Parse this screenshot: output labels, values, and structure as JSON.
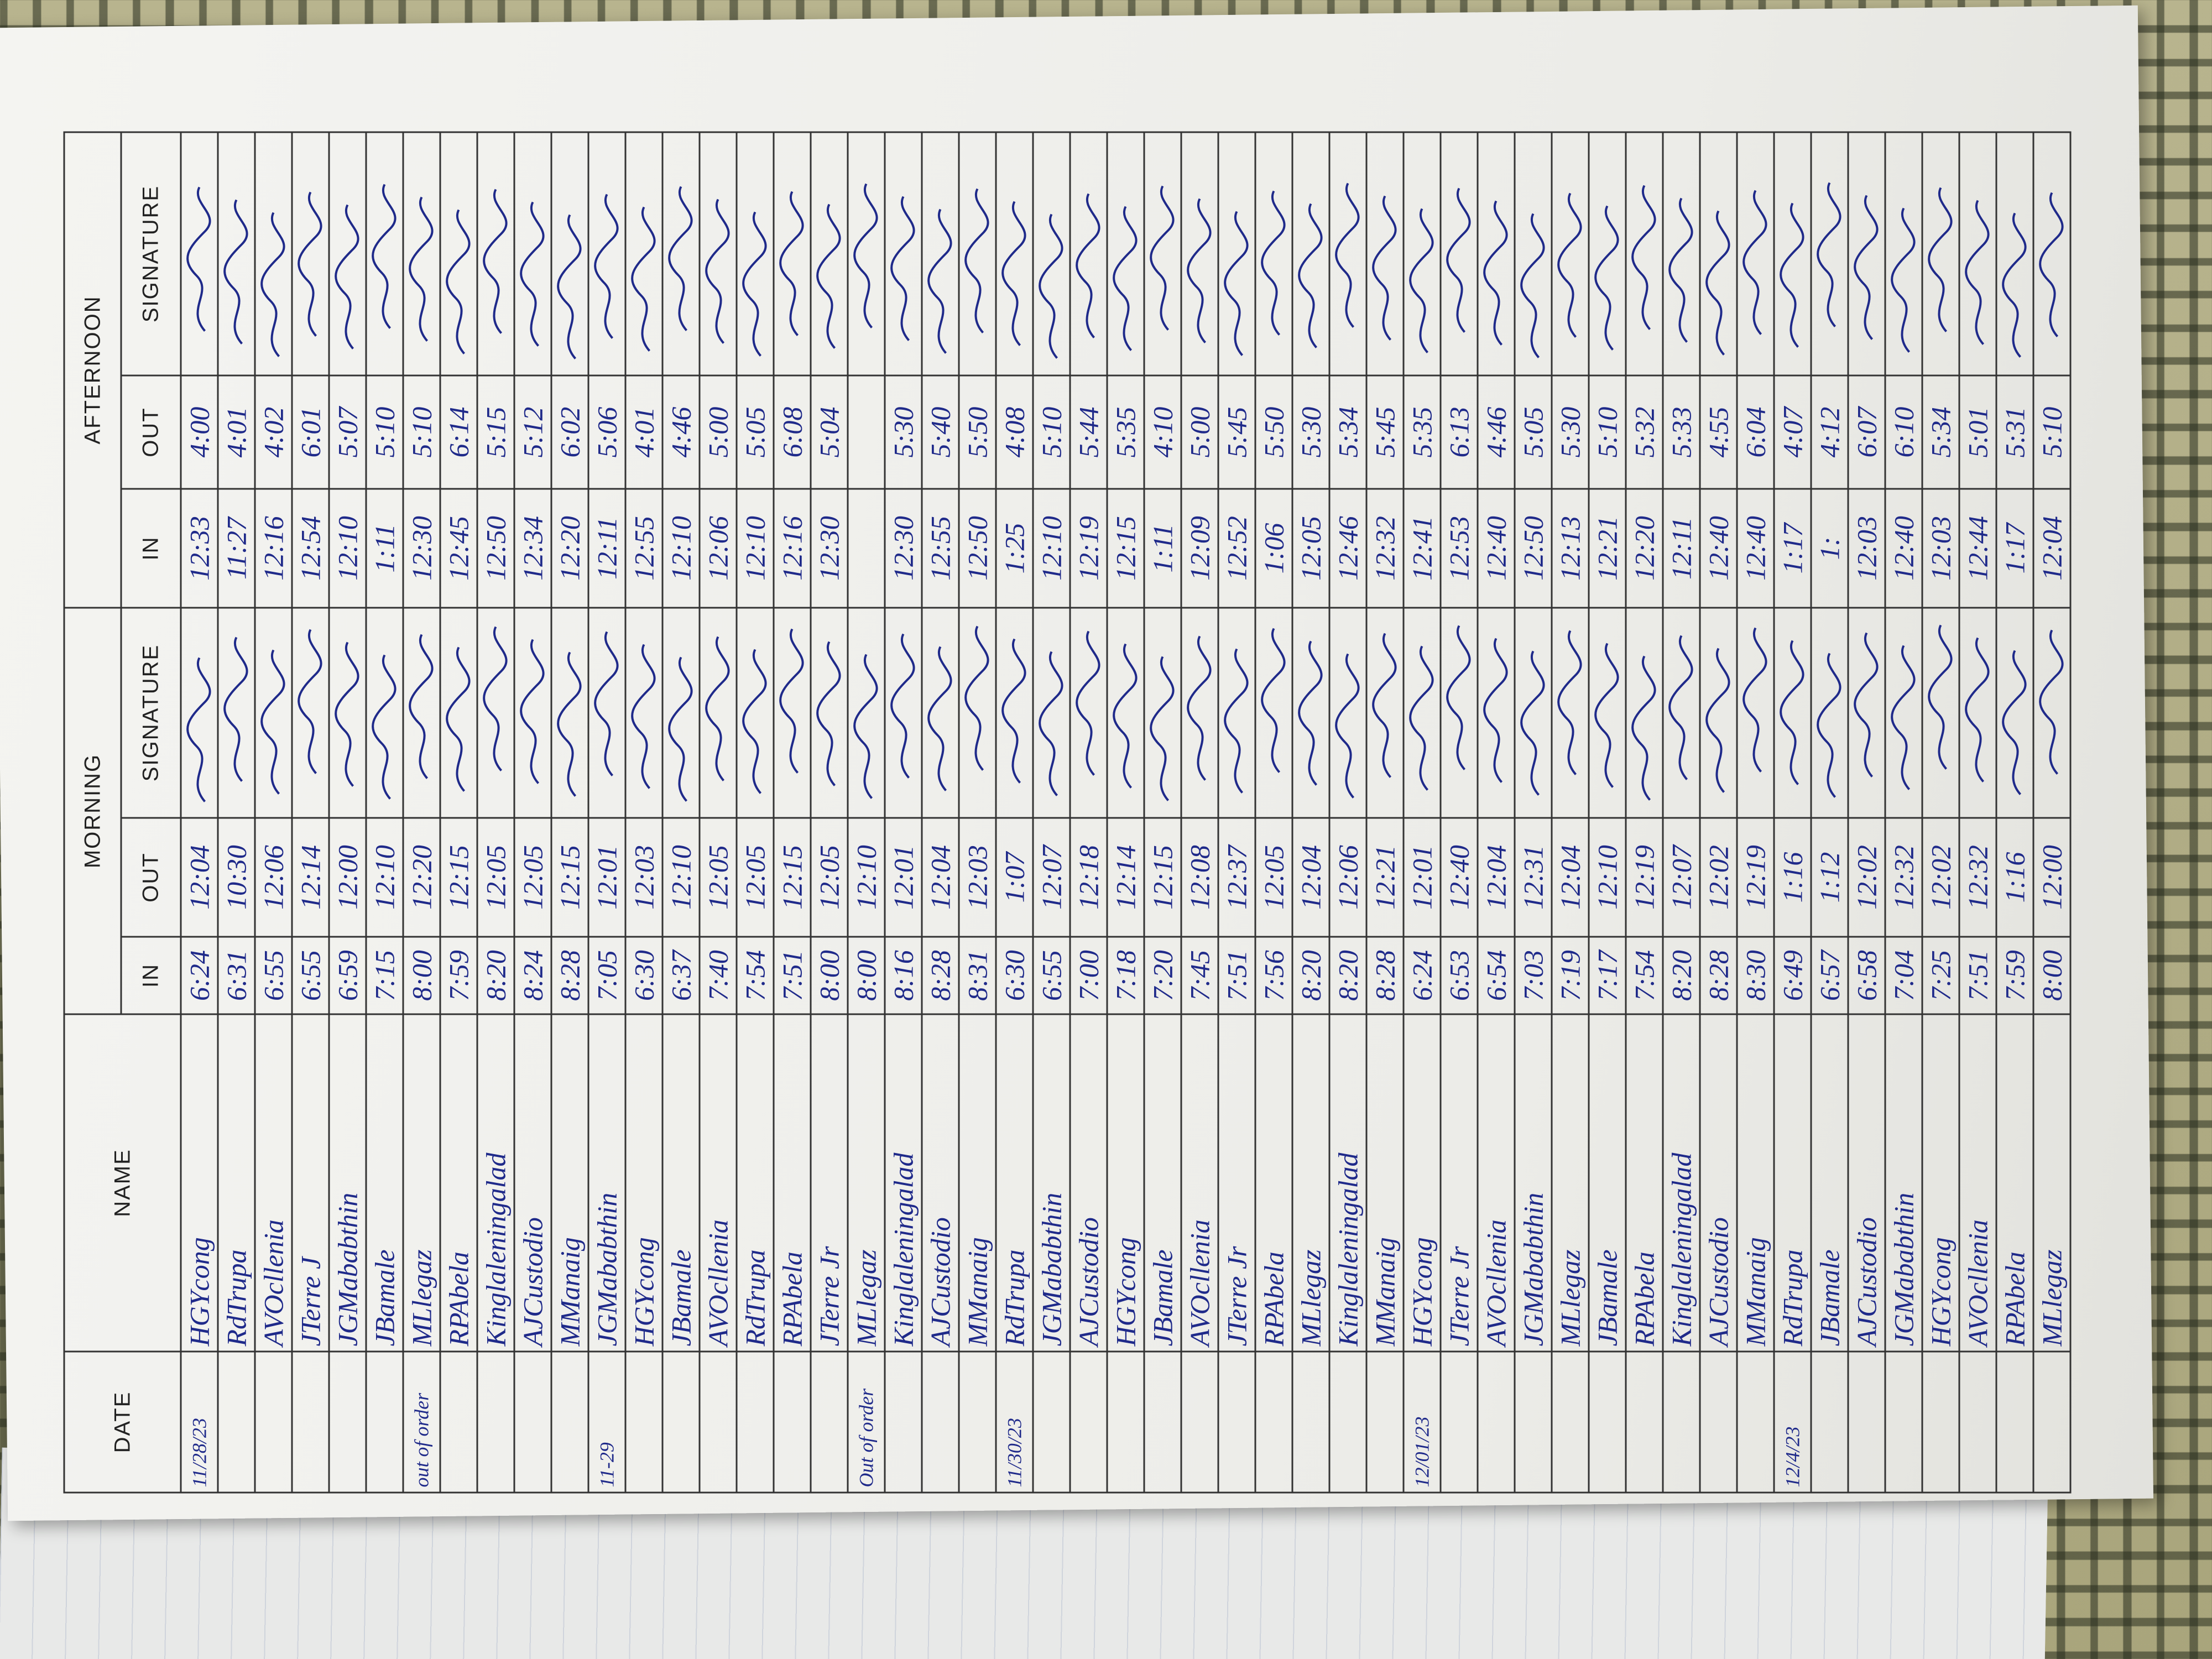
{
  "header": {
    "date": "DATE",
    "name": "NAME",
    "morning": "MORNING",
    "morning_in": "IN",
    "morning_out": "OUT",
    "morning_signature": "SIGNATURE",
    "afternoon": "AFTERNOON",
    "afternoon_in": "IN",
    "afternoon_out": "OUT",
    "afternoon_signature": "SIGNATURE"
  },
  "rows": [
    {
      "date": "11/28/23",
      "name": "HGYcong",
      "morning_in": "6:24",
      "morning_out": "12:04",
      "afternoon_in": "12:33",
      "afternoon_out": "4:00"
    },
    {
      "name": "RdTrupa",
      "morning_in": "6:31",
      "morning_out": "10:30",
      "afternoon_in": "11:27",
      "afternoon_out": "4:01"
    },
    {
      "name": "AVOcllenia",
      "morning_in": "6:55",
      "morning_out": "12:06",
      "afternoon_in": "12:16",
      "afternoon_out": "4:02"
    },
    {
      "name": "JTerre J",
      "morning_in": "6:55",
      "morning_out": "12:14",
      "afternoon_in": "12:54",
      "afternoon_out": "6:01"
    },
    {
      "name": "JGMababthin",
      "morning_in": "6:59",
      "morning_out": "12:00",
      "afternoon_in": "12:10",
      "afternoon_out": "5:07"
    },
    {
      "name": "JBamale",
      "morning_in": "7:15",
      "morning_out": "12:10",
      "afternoon_in": "1:11",
      "afternoon_out": "5:10"
    },
    {
      "date": "out of order",
      "name": "MLlegaz",
      "morning_in": "8:00",
      "morning_out": "12:20",
      "afternoon_in": "12:30",
      "afternoon_out": "5:10"
    },
    {
      "name": "RPAbela",
      "morning_in": "7:59",
      "morning_out": "12:15",
      "afternoon_in": "12:45",
      "afternoon_out": "6:14"
    },
    {
      "name": "Kinglaleningalad",
      "morning_in": "8:20",
      "morning_out": "12:05",
      "afternoon_in": "12:50",
      "afternoon_out": "5:15"
    },
    {
      "name": "AJCustodio",
      "morning_in": "8:24",
      "morning_out": "12:05",
      "afternoon_in": "12:34",
      "afternoon_out": "5:12"
    },
    {
      "name": "MManaig",
      "morning_in": "8:28",
      "morning_out": "12:15",
      "afternoon_in": "12:20",
      "afternoon_out": "6:02"
    },
    {
      "date": "11-29",
      "name": "JGMababthin",
      "morning_in": "7:05",
      "morning_out": "12:01",
      "afternoon_in": "12:11",
      "afternoon_out": "5:06"
    },
    {
      "name": "HGYcong",
      "morning_in": "6:30",
      "morning_out": "12:03",
      "afternoon_in": "12:55",
      "afternoon_out": "4:01"
    },
    {
      "name": "JBamale",
      "morning_in": "6:37",
      "morning_out": "12:10",
      "afternoon_in": "12:10",
      "afternoon_out": "4:46"
    },
    {
      "name": "AVOcllenia",
      "morning_in": "7:40",
      "morning_out": "12:05",
      "afternoon_in": "12:06",
      "afternoon_out": "5:00"
    },
    {
      "name": "RdTrupa",
      "morning_in": "7:54",
      "morning_out": "12:05",
      "afternoon_in": "12:10",
      "afternoon_out": "5:05"
    },
    {
      "name": "RPAbela",
      "morning_in": "7:51",
      "morning_out": "12:15",
      "afternoon_in": "12:16",
      "afternoon_out": "6:08"
    },
    {
      "name": "JTerre Jr",
      "morning_in": "8:00",
      "morning_out": "12:05",
      "afternoon_in": "12:30",
      "afternoon_out": "5:04"
    },
    {
      "date": "Out of order",
      "name": "MLlegaz",
      "morning_in": "8:00",
      "morning_out": "12:10"
    },
    {
      "name": "Kinglaleningalad",
      "morning_in": "8:16",
      "morning_out": "12:01",
      "afternoon_in": "12:30",
      "afternoon_out": "5:30"
    },
    {
      "name": "AJCustodio",
      "morning_in": "8:28",
      "morning_out": "12:04",
      "afternoon_in": "12:55",
      "afternoon_out": "5:40"
    },
    {
      "name": "MManaig",
      "morning_in": "8:31",
      "morning_out": "12:03",
      "afternoon_in": "12:50",
      "afternoon_out": "5:50"
    },
    {
      "date": "11/30/23",
      "name": "RdTrupa",
      "morning_in": "6:30",
      "morning_out": "1:07",
      "afternoon_in": "1:25",
      "afternoon_out": "4:08"
    },
    {
      "name": "JGMababthin",
      "morning_in": "6:55",
      "morning_out": "12:07",
      "afternoon_in": "12:10",
      "afternoon_out": "5:10"
    },
    {
      "name": "AJCustodio",
      "morning_in": "7:00",
      "morning_out": "12:18",
      "afternoon_in": "12:19",
      "afternoon_out": "5:44"
    },
    {
      "name": "HGYcong",
      "morning_in": "7:18",
      "morning_out": "12:14",
      "afternoon_in": "12:15",
      "afternoon_out": "5:35"
    },
    {
      "name": "JBamale",
      "morning_in": "7:20",
      "morning_out": "12:15",
      "afternoon_in": "1:11",
      "afternoon_out": "4:10"
    },
    {
      "name": "AVOcllenia",
      "morning_in": "7:45",
      "morning_out": "12:08",
      "afternoon_in": "12:09",
      "afternoon_out": "5:00"
    },
    {
      "name": "JTerre Jr",
      "morning_in": "7:51",
      "morning_out": "12:37",
      "afternoon_in": "12:52",
      "afternoon_out": "5:45"
    },
    {
      "name": "RPAbela",
      "morning_in": "7:56",
      "morning_out": "12:05",
      "afternoon_in": "1:06",
      "afternoon_out": "5:50"
    },
    {
      "name": "MLlegaz",
      "morning_in": "8:20",
      "morning_out": "12:04",
      "afternoon_in": "12:05",
      "afternoon_out": "5:30"
    },
    {
      "name": "Kinglaleningalad",
      "morning_in": "8:20",
      "morning_out": "12:06",
      "afternoon_in": "12:46",
      "afternoon_out": "5:34"
    },
    {
      "name": "MManaig",
      "morning_in": "8:28",
      "morning_out": "12:21",
      "afternoon_in": "12:32",
      "afternoon_out": "5:45"
    },
    {
      "date": "12/01/23",
      "name": "HGYcong",
      "morning_in": "6:24",
      "morning_out": "12:01",
      "afternoon_in": "12:41",
      "afternoon_out": "5:35"
    },
    {
      "name": "JTerre Jr",
      "morning_in": "6:53",
      "morning_out": "12:40",
      "afternoon_in": "12:53",
      "afternoon_out": "6:13"
    },
    {
      "name": "AVOcllenia",
      "morning_in": "6:54",
      "morning_out": "12:04",
      "afternoon_in": "12:40",
      "afternoon_out": "4:46"
    },
    {
      "name": "JGMababthin",
      "morning_in": "7:03",
      "morning_out": "12:31",
      "afternoon_in": "12:50",
      "afternoon_out": "5:05"
    },
    {
      "name": "MLlegaz",
      "morning_in": "7:19",
      "morning_out": "12:04",
      "afternoon_in": "12:13",
      "afternoon_out": "5:30"
    },
    {
      "name": "JBamale",
      "morning_in": "7:17",
      "morning_out": "12:10",
      "afternoon_in": "12:21",
      "afternoon_out": "5:10"
    },
    {
      "name": "RPAbela",
      "morning_in": "7:54",
      "morning_out": "12:19",
      "afternoon_in": "12:20",
      "afternoon_out": "5:32"
    },
    {
      "name": "Kinglaleningalad",
      "morning_in": "8:20",
      "morning_out": "12:07",
      "afternoon_in": "12:11",
      "afternoon_out": "5:33"
    },
    {
      "name": "AJCustodio",
      "morning_in": "8:28",
      "morning_out": "12:02",
      "afternoon_in": "12:40",
      "afternoon_out": "4:55"
    },
    {
      "name": "MManaig",
      "morning_in": "8:30",
      "morning_out": "12:19",
      "afternoon_in": "12:40",
      "afternoon_out": "6:04"
    },
    {
      "date": "12/4/23",
      "name": "RdTrupa",
      "morning_in": "6:49",
      "morning_out": "1:16",
      "afternoon_in": "1:17",
      "afternoon_out": "4:07"
    },
    {
      "name": "JBamale",
      "morning_in": "6:57",
      "morning_out": "1:12",
      "afternoon_in": "1:",
      "afternoon_out": "4:12"
    },
    {
      "name": "AJCustodio",
      "morning_in": "6:58",
      "morning_out": "12:02",
      "afternoon_in": "12:03",
      "afternoon_out": "6:07"
    },
    {
      "name": "JGMababthin",
      "morning_in": "7:04",
      "morning_out": "12:32",
      "afternoon_in": "12:40",
      "afternoon_out": "6:10"
    },
    {
      "name": "HGYcong",
      "morning_in": "7:25",
      "morning_out": "12:02",
      "afternoon_in": "12:03",
      "afternoon_out": "5:34"
    },
    {
      "name": "AVOcllenia",
      "morning_in": "7:51",
      "morning_out": "12:32",
      "afternoon_in": "12:44",
      "afternoon_out": "5:01"
    },
    {
      "name": "RPAbela",
      "morning_in": "7:59",
      "morning_out": "1:16",
      "afternoon_in": "1:17",
      "afternoon_out": "5:31"
    },
    {
      "name": "MLlegaz",
      "morning_in": "8:00",
      "morning_out": "12:00",
      "afternoon_in": "12:04",
      "afternoon_out": "5:10"
    }
  ]
}
